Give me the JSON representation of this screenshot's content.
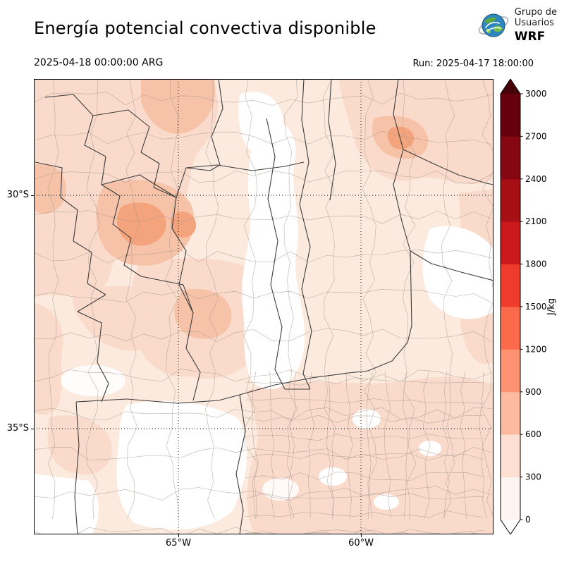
{
  "header": {
    "title": "Energía potencial convectiva disponible",
    "logo": {
      "line1": "Grupo de",
      "line2": "Usuarios",
      "line3": "WRF"
    }
  },
  "times": {
    "valid": "2025-04-18 00:00:00 ARG",
    "run": "Run: 2025-04-17 18:00:00"
  },
  "axes": {
    "lat_ticks": [
      {
        "label": "30°S",
        "frac": 0.2554
      },
      {
        "label": "35°S",
        "frac": 0.7678
      }
    ],
    "lon_ticks": [
      {
        "label": "65°W",
        "frac": 0.3144
      },
      {
        "label": "60°W",
        "frac": 0.7117
      }
    ]
  },
  "colorbar": {
    "unit": "J/kg",
    "tick_labels_top_to_bottom": [
      "3000",
      "2700",
      "2400",
      "2100",
      "1800",
      "1500",
      "1200",
      "900",
      "600",
      "300",
      "0"
    ],
    "colors_low_to_high": [
      "#fff5f0",
      "#fee0d2",
      "#fcbba1",
      "#fc9272",
      "#fb6a4a",
      "#ef3b2c",
      "#cb181d",
      "#a50f15",
      "#840711",
      "#67000d"
    ],
    "over_color": "#450008",
    "under_color": "#ffffff"
  },
  "map_style": {
    "province_line_color": "#3c3c3c",
    "department_line_color": "#a59790",
    "gridline_color": "#000000",
    "field_wash_color": "#fceade",
    "field_low_color": "#fadbcb",
    "field_mid_color": "#f7c3a8",
    "field_high_color": "#f3a47c"
  },
  "chart_data": {
    "type": "heatmap",
    "title": "Energía potencial convectiva disponible",
    "variable": "CAPE (convective available potential energy)",
    "unit": "J/kg",
    "model": "WRF (Grupo de Usuarios WRF)",
    "valid_time": "2025-04-18 00:00:00 ARG",
    "run_time": "2025-04-17 18:00:00",
    "levels": [
      0,
      300,
      600,
      900,
      1200,
      1500,
      1800,
      2100,
      2400,
      2700,
      3000
    ],
    "colors_low_to_high": [
      "#fff5f0",
      "#fee0d2",
      "#fcbba1",
      "#fc9272",
      "#fb6a4a",
      "#ef3b2c",
      "#cb181d",
      "#a50f15",
      "#840711",
      "#67000d"
    ],
    "colorbar_extend": "both",
    "lat_gridlines_deg_s": [
      30,
      35
    ],
    "lon_gridlines_deg_w": [
      65,
      60
    ],
    "region": "Central and northern Argentina with province and department boundaries",
    "field_summary": "CAPE mostly 0-600 J/kg across the domain; local maxima ~600-1200 J/kg near 30.5°S 65.5°W and ~29.5°S 61°W; near-zero CAPE over central Santa Fe, the southern Córdoba / La Pampa area and the southwest corner."
  }
}
